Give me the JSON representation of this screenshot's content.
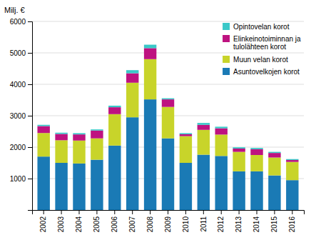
{
  "chart_data": {
    "type": "bar",
    "stacked": true,
    "y_label": "Milj. €",
    "categories": [
      "2002",
      "2003",
      "2004",
      "2005",
      "2006",
      "2007",
      "2008",
      "2009",
      "2010",
      "2011",
      "2012",
      "2013",
      "2014",
      "2015",
      "2016"
    ],
    "series": [
      {
        "name": "Asuntovelkojen korot",
        "color": "#1a7ab5",
        "values": [
          1700,
          1500,
          1480,
          1600,
          2050,
          2950,
          3520,
          2280,
          1500,
          1760,
          1720,
          1230,
          1230,
          1100,
          950
        ]
      },
      {
        "name": "Muun velan korot",
        "color": "#c8d42a",
        "values": [
          750,
          720,
          730,
          680,
          1000,
          1100,
          1280,
          1000,
          850,
          790,
          680,
          620,
          520,
          570,
          580
        ]
      },
      {
        "name": "Elinkeinotoiminnan ja\ntulolähteen korot",
        "color": "#be1280",
        "values": [
          220,
          200,
          195,
          250,
          220,
          300,
          350,
          240,
          60,
          160,
          200,
          105,
          185,
          145,
          60
        ]
      },
      {
        "name": "Opintovelan korot",
        "color": "#3ac8c8",
        "values": [
          40,
          40,
          40,
          35,
          50,
          100,
          110,
          35,
          35,
          60,
          50,
          40,
          40,
          35,
          30
        ]
      }
    ],
    "ylim": [
      0,
      6000
    ],
    "yticks": [
      1000,
      2000,
      3000,
      4000,
      5000,
      6000
    ],
    "grid": true,
    "legend": "upper right"
  }
}
